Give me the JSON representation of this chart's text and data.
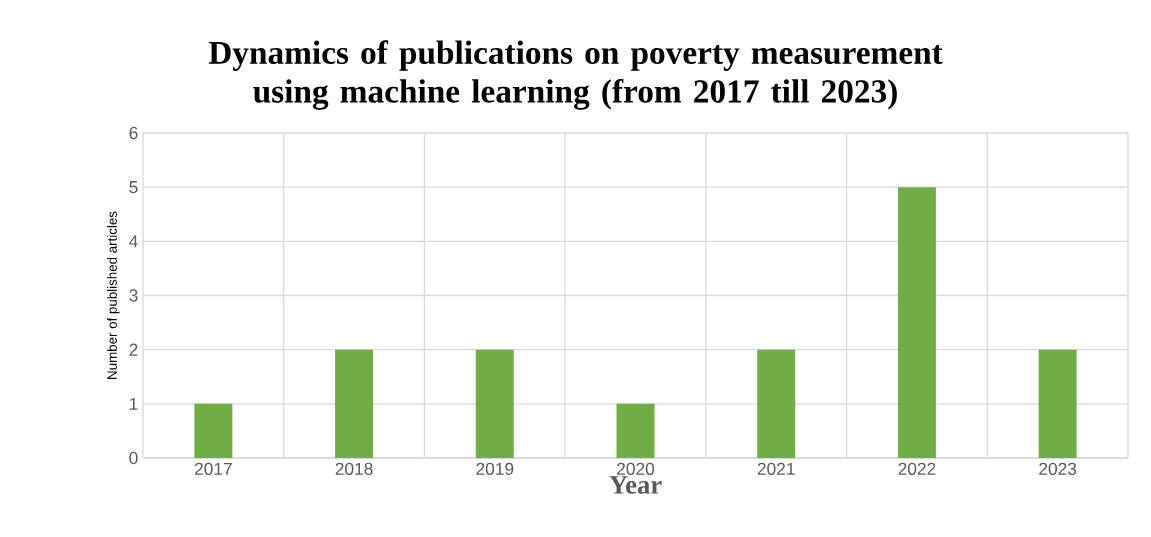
{
  "chart_data": {
    "type": "bar",
    "title": "Dynamics of publications on poverty measurement using machine learning (from 2017 till 2023)",
    "xlabel": "Year",
    "ylabel": "Number of published articles",
    "categories": [
      "2017",
      "2018",
      "2019",
      "2020",
      "2021",
      "2022",
      "2023"
    ],
    "values": [
      1,
      2,
      2,
      1,
      2,
      5,
      2
    ],
    "color": "#70ad47",
    "ylim": [
      0,
      6
    ],
    "yticks": [
      0,
      1,
      2,
      3,
      4,
      5,
      6
    ],
    "grid": true
  }
}
